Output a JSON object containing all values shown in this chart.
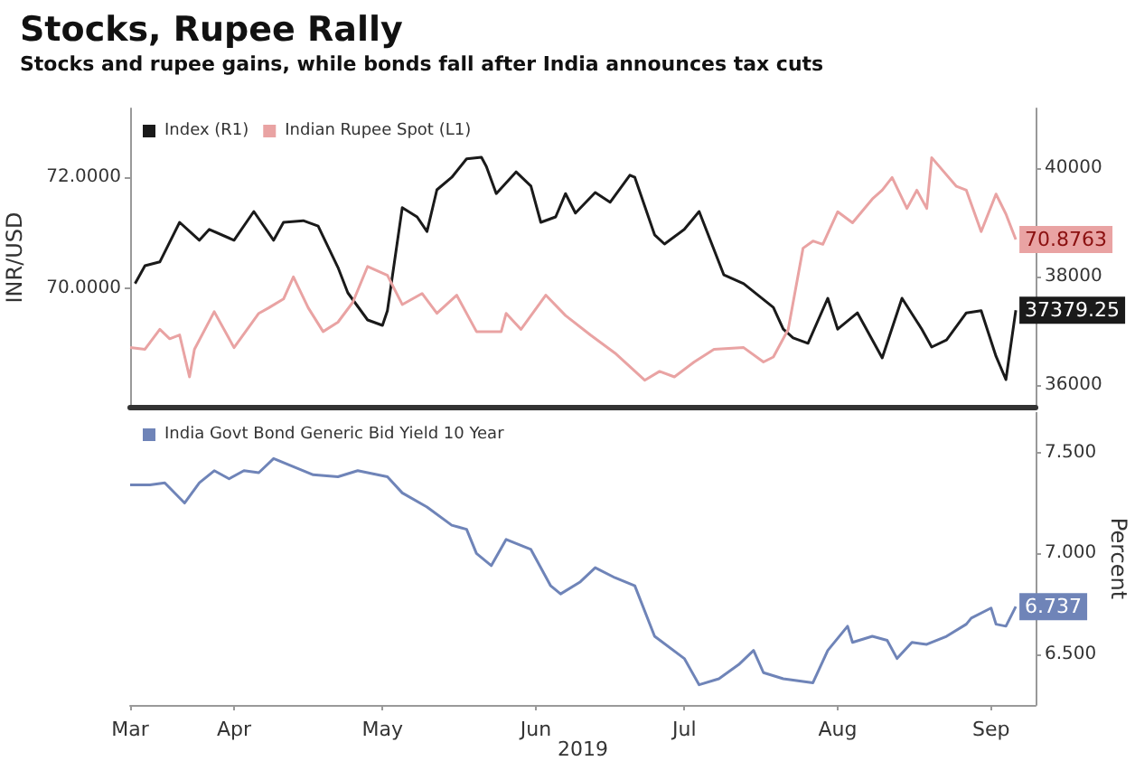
{
  "chart_data": [
    {
      "type": "line",
      "title": "Stocks, Rupee Rally",
      "subtitle": "Stocks and rupee gains, while bonds fall after India announces tax cuts",
      "ylabel": "INR/USD",
      "legend": "top left",
      "tick_labels": "y",
      "xlim": [
        "2019-03-11",
        "2019-09-10"
      ],
      "ylim": [
        67.85,
        73.25
      ],
      "yticks": [
        {
          "value": 70,
          "label": "70.0000"
        },
        {
          "value": 72,
          "label": "72.0000"
        }
      ],
      "y2lim": [
        35600,
        41100
      ],
      "y2ticks": [
        36000,
        38000,
        40000
      ],
      "series": [
        {
          "name": "Index (R1)",
          "color": "#1a1a1a",
          "axis": "y2",
          "x": [
            "2019-03-12",
            "2019-03-14",
            "2019-03-17",
            "2019-03-21",
            "2019-03-25",
            "2019-03-27",
            "2019-04-01",
            "2019-04-05",
            "2019-04-09",
            "2019-04-11",
            "2019-04-15",
            "2019-04-18",
            "2019-04-22",
            "2019-04-24",
            "2019-04-28",
            "2019-05-01",
            "2019-05-02",
            "2019-05-05",
            "2019-05-08",
            "2019-05-10",
            "2019-05-12",
            "2019-05-15",
            "2019-05-18",
            "2019-05-21",
            "2019-05-22",
            "2019-05-24",
            "2019-05-28",
            "2019-05-31",
            "2019-06-02",
            "2019-06-05",
            "2019-06-07",
            "2019-06-09",
            "2019-06-13",
            "2019-06-16",
            "2019-06-20",
            "2019-06-21",
            "2019-06-25",
            "2019-06-27",
            "2019-07-01",
            "2019-07-04",
            "2019-07-09",
            "2019-07-13",
            "2019-07-19",
            "2019-07-21",
            "2019-07-23",
            "2019-07-26",
            "2019-07-30",
            "2019-08-01",
            "2019-08-05",
            "2019-08-10",
            "2019-08-14",
            "2019-08-18",
            "2019-08-20",
            "2019-08-23",
            "2019-08-27",
            "2019-08-30",
            "2019-09-02",
            "2019-09-04",
            "2019-09-06"
          ],
          "values": [
            37870,
            38200,
            38270,
            39000,
            38670,
            38870,
            38670,
            39200,
            38670,
            39000,
            39030,
            38930,
            38170,
            37700,
            37200,
            37100,
            37370,
            39270,
            39100,
            38830,
            39600,
            39830,
            40170,
            40200,
            40030,
            39530,
            39930,
            39670,
            39000,
            39100,
            39530,
            39170,
            39550,
            39370,
            39870,
            39830,
            38770,
            38600,
            38870,
            39200,
            38030,
            37870,
            37430,
            37030,
            36870,
            36770,
            37600,
            37030,
            37330,
            36500,
            37600,
            37030,
            36700,
            36830,
            37330,
            37370,
            36530,
            36100,
            37379.25
          ],
          "value_labels": [
            null,
            null,
            null,
            null,
            null,
            null,
            null,
            null,
            null,
            null,
            null,
            null,
            null,
            null,
            null,
            null,
            null,
            null,
            null,
            null,
            null,
            null,
            null,
            null,
            null,
            null,
            null,
            null,
            null,
            null,
            null,
            null,
            null,
            null,
            null,
            null,
            null,
            null,
            null,
            null,
            null,
            null,
            null,
            null,
            null,
            null,
            null,
            null,
            null,
            null,
            null,
            null,
            null,
            null,
            null,
            null,
            null,
            null,
            "37379.25"
          ]
        },
        {
          "name": "Indian Rupee Spot (L1)",
          "color": "#e9a3a3",
          "x": [
            "2019-03-11",
            "2019-03-14",
            "2019-03-17",
            "2019-03-19",
            "2019-03-21",
            "2019-03-23",
            "2019-03-24",
            "2019-03-28",
            "2019-04-01",
            "2019-04-06",
            "2019-04-08",
            "2019-04-11",
            "2019-04-13",
            "2019-04-16",
            "2019-04-19",
            "2019-04-22",
            "2019-04-25",
            "2019-04-28",
            "2019-05-02",
            "2019-05-05",
            "2019-05-09",
            "2019-05-12",
            "2019-05-16",
            "2019-05-20",
            "2019-05-25",
            "2019-05-26",
            "2019-05-29",
            "2019-06-03",
            "2019-06-07",
            "2019-06-12",
            "2019-06-17",
            "2019-06-23",
            "2019-06-26",
            "2019-06-29",
            "2019-07-03",
            "2019-07-07",
            "2019-07-13",
            "2019-07-17",
            "2019-07-19",
            "2019-07-22",
            "2019-07-25",
            "2019-07-27",
            "2019-07-29",
            "2019-08-01",
            "2019-08-04",
            "2019-08-08",
            "2019-08-10",
            "2019-08-12",
            "2019-08-15",
            "2019-08-17",
            "2019-08-19",
            "2019-08-20",
            "2019-08-25",
            "2019-08-27",
            "2019-08-30",
            "2019-09-02",
            "2019-09-04",
            "2019-09-06"
          ],
          "values": [
            68.92,
            68.89,
            69.25,
            69.08,
            69.15,
            68.39,
            68.89,
            69.57,
            68.92,
            69.54,
            69.64,
            69.8,
            70.2,
            69.64,
            69.21,
            69.38,
            69.74,
            70.39,
            70.23,
            69.7,
            69.9,
            69.54,
            69.87,
            69.21,
            69.21,
            69.54,
            69.25,
            69.87,
            69.5,
            69.15,
            68.82,
            68.33,
            68.49,
            68.39,
            68.66,
            68.89,
            68.92,
            68.66,
            68.75,
            69.25,
            70.72,
            70.85,
            70.79,
            71.38,
            71.18,
            71.61,
            71.77,
            72.0,
            71.44,
            71.77,
            71.44,
            72.36,
            71.84,
            71.77,
            71.02,
            71.7,
            71.34,
            70.8763
          ],
          "value_labels": [
            null,
            null,
            null,
            null,
            null,
            null,
            null,
            null,
            null,
            null,
            null,
            null,
            null,
            null,
            null,
            null,
            null,
            null,
            null,
            null,
            null,
            null,
            null,
            null,
            null,
            null,
            null,
            null,
            null,
            null,
            null,
            null,
            null,
            null,
            null,
            null,
            null,
            null,
            null,
            null,
            null,
            null,
            null,
            null,
            null,
            null,
            null,
            null,
            null,
            null,
            null,
            null,
            null,
            null,
            null,
            null,
            null,
            "70.8763"
          ]
        }
      ]
    },
    {
      "type": "line",
      "xlabel": "2019",
      "y2label": "Percent",
      "legend": "top left",
      "xlim": [
        "2019-03-11",
        "2019-09-10"
      ],
      "xticks": [
        {
          "value": "2019-03-11",
          "label": "Mar"
        },
        {
          "value": "2019-04-01",
          "label": "Apr"
        },
        {
          "value": "2019-05-01",
          "label": "May"
        },
        {
          "value": "2019-06-01",
          "label": "Jun"
        },
        {
          "value": "2019-07-01",
          "label": "Jul"
        },
        {
          "value": "2019-08-01",
          "label": "Aug"
        },
        {
          "value": "2019-09-01",
          "label": "Sep"
        }
      ],
      "y2lim": [
        6.25,
        7.7
      ],
      "y2ticks": [
        {
          "value": 6.5,
          "label": "6.500"
        },
        {
          "value": 7,
          "label": "7.000"
        },
        {
          "value": 7.5,
          "label": "7.500"
        }
      ],
      "series": [
        {
          "name": "India Govt Bond Generic Bid Yield 10 Year",
          "color": "#6f84b8",
          "axis": "y2",
          "x": [
            "2019-03-11",
            "2019-03-15",
            "2019-03-18",
            "2019-03-22",
            "2019-03-25",
            "2019-03-28",
            "2019-03-31",
            "2019-04-03",
            "2019-04-06",
            "2019-04-09",
            "2019-04-12",
            "2019-04-17",
            "2019-04-22",
            "2019-04-26",
            "2019-05-02",
            "2019-05-05",
            "2019-05-10",
            "2019-05-15",
            "2019-05-18",
            "2019-05-20",
            "2019-05-23",
            "2019-05-26",
            "2019-05-31",
            "2019-06-04",
            "2019-06-06",
            "2019-06-10",
            "2019-06-13",
            "2019-06-17",
            "2019-06-21",
            "2019-06-25",
            "2019-07-01",
            "2019-07-04",
            "2019-07-08",
            "2019-07-12",
            "2019-07-15",
            "2019-07-17",
            "2019-07-21",
            "2019-07-24",
            "2019-07-27",
            "2019-07-30",
            "2019-08-03",
            "2019-08-04",
            "2019-08-08",
            "2019-08-11",
            "2019-08-13",
            "2019-08-16",
            "2019-08-19",
            "2019-08-23",
            "2019-08-27",
            "2019-08-28",
            "2019-09-01",
            "2019-09-02",
            "2019-09-04",
            "2019-09-06"
          ],
          "values": [
            7.34,
            7.34,
            7.35,
            7.25,
            7.35,
            7.41,
            7.37,
            7.41,
            7.4,
            7.47,
            7.44,
            7.39,
            7.38,
            7.41,
            7.38,
            7.3,
            7.23,
            7.14,
            7.12,
            7.0,
            6.94,
            7.07,
            7.02,
            6.84,
            6.8,
            6.86,
            6.93,
            6.88,
            6.84,
            6.59,
            6.48,
            6.35,
            6.38,
            6.45,
            6.52,
            6.41,
            6.38,
            6.37,
            6.36,
            6.52,
            6.64,
            6.56,
            6.59,
            6.57,
            6.48,
            6.56,
            6.55,
            6.59,
            6.65,
            6.68,
            6.73,
            6.65,
            6.64,
            6.737
          ],
          "value_labels": [
            null,
            null,
            null,
            null,
            null,
            null,
            null,
            null,
            null,
            null,
            null,
            null,
            null,
            null,
            null,
            null,
            null,
            null,
            null,
            null,
            null,
            null,
            null,
            null,
            null,
            null,
            null,
            null,
            null,
            null,
            null,
            null,
            null,
            null,
            null,
            null,
            null,
            null,
            null,
            null,
            null,
            null,
            null,
            null,
            null,
            null,
            null,
            null,
            null,
            null,
            null,
            null,
            null,
            "6.737"
          ]
        }
      ]
    }
  ]
}
